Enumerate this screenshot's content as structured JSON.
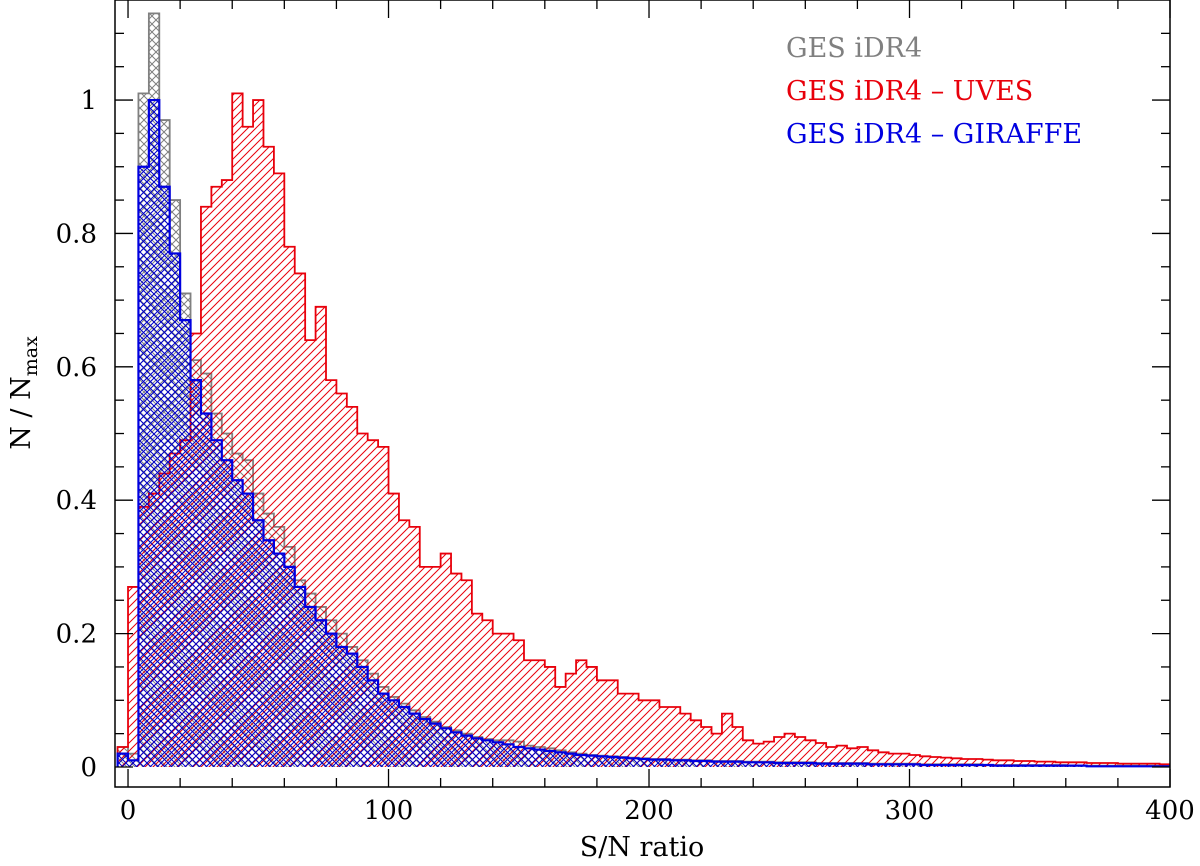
{
  "chart_data": {
    "type": "histogram",
    "xlabel": "S/N ratio",
    "ylabel": "N / N",
    "ylabel_sub": "max",
    "xlim": [
      -5,
      400
    ],
    "ylim": [
      -0.03,
      1.15
    ],
    "bin_width": 4,
    "x_start": -4,
    "xticks": [
      0,
      100,
      200,
      300,
      400
    ],
    "xtick_labels": [
      "0",
      "100",
      "200",
      "300",
      "400"
    ],
    "yticks": [
      0,
      0.2,
      0.4,
      0.6,
      0.8,
      1.0
    ],
    "ytick_labels": [
      "0",
      "0.2",
      "0.4",
      "0.6",
      "0.8",
      "1"
    ],
    "legend_position": "top-right",
    "series": [
      {
        "name": "GES iDR4",
        "color": "#808080",
        "hatch": "cross",
        "values": [
          0.03,
          0.02,
          1.01,
          1.13,
          0.97,
          0.85,
          0.71,
          0.61,
          0.59,
          0.53,
          0.5,
          0.47,
          0.46,
          0.41,
          0.38,
          0.36,
          0.33,
          0.28,
          0.26,
          0.24,
          0.22,
          0.2,
          0.18,
          0.16,
          0.14,
          0.12,
          0.105,
          0.095,
          0.085,
          0.075,
          0.068,
          0.06,
          0.055,
          0.05,
          0.045,
          0.042,
          0.04,
          0.04,
          0.038,
          0.032,
          0.03,
          0.028,
          0.025,
          0.022,
          0.02,
          0.018,
          0.017,
          0.016,
          0.015,
          0.014,
          0.013,
          0.012,
          0.012,
          0.011,
          0.011,
          0.01,
          0.01,
          0.009,
          0.009,
          0.009,
          0.008,
          0.008,
          0.008,
          0.007,
          0.007,
          0.007,
          0.007,
          0.006,
          0.006,
          0.006,
          0.006,
          0.006,
          0.005,
          0.005,
          0.005,
          0.005,
          0.005,
          0.004,
          0.004,
          0.004,
          0.004,
          0.004,
          0.004,
          0.003,
          0.003,
          0.003,
          0.003,
          0.003,
          0.003,
          0.003,
          0.003,
          0.002,
          0.002,
          0.002,
          0.002,
          0.002,
          0.002,
          0.002,
          0.002,
          0.002,
          0.002,
          0.001
        ]
      },
      {
        "name": "GES iDR4 – UVES",
        "color": "#e8000b",
        "hatch": "diag",
        "values": [
          0.03,
          0.27,
          0.39,
          0.41,
          0.44,
          0.47,
          0.49,
          0.65,
          0.84,
          0.87,
          0.88,
          1.01,
          0.96,
          1.0,
          0.93,
          0.89,
          0.78,
          0.74,
          0.64,
          0.69,
          0.58,
          0.56,
          0.54,
          0.5,
          0.49,
          0.48,
          0.41,
          0.37,
          0.36,
          0.3,
          0.3,
          0.32,
          0.29,
          0.28,
          0.23,
          0.22,
          0.2,
          0.2,
          0.19,
          0.16,
          0.16,
          0.15,
          0.12,
          0.14,
          0.16,
          0.15,
          0.13,
          0.13,
          0.11,
          0.11,
          0.1,
          0.1,
          0.09,
          0.09,
          0.08,
          0.07,
          0.06,
          0.05,
          0.08,
          0.06,
          0.04,
          0.035,
          0.038,
          0.045,
          0.05,
          0.045,
          0.04,
          0.036,
          0.03,
          0.032,
          0.028,
          0.03,
          0.025,
          0.022,
          0.02,
          0.02,
          0.018,
          0.016,
          0.015,
          0.014,
          0.013,
          0.012,
          0.012,
          0.011,
          0.01,
          0.01,
          0.009,
          0.009,
          0.008,
          0.008,
          0.007,
          0.007,
          0.007,
          0.006,
          0.006,
          0.006,
          0.005,
          0.005,
          0.005,
          0.005,
          0.004,
          0.004
        ]
      },
      {
        "name": "GES iDR4 – GIRAFFE",
        "color": "#0000e0",
        "hatch": "cross",
        "values": [
          0.02,
          0.01,
          0.9,
          1.0,
          0.87,
          0.77,
          0.67,
          0.58,
          0.53,
          0.49,
          0.46,
          0.43,
          0.41,
          0.37,
          0.34,
          0.32,
          0.3,
          0.27,
          0.24,
          0.22,
          0.2,
          0.18,
          0.17,
          0.15,
          0.13,
          0.11,
          0.1,
          0.09,
          0.08,
          0.072,
          0.065,
          0.058,
          0.052,
          0.047,
          0.043,
          0.04,
          0.037,
          0.034,
          0.03,
          0.028,
          0.026,
          0.024,
          0.022,
          0.02,
          0.018,
          0.017,
          0.016,
          0.015,
          0.014,
          0.013,
          0.012,
          0.011,
          0.011,
          0.01,
          0.01,
          0.009,
          0.009,
          0.008,
          0.008,
          0.008,
          0.007,
          0.007,
          0.007,
          0.006,
          0.006,
          0.006,
          0.006,
          0.005,
          0.005,
          0.005,
          0.005,
          0.005,
          0.004,
          0.004,
          0.004,
          0.004,
          0.004,
          0.003,
          0.003,
          0.003,
          0.003,
          0.003,
          0.003,
          0.003,
          0.002,
          0.002,
          0.002,
          0.002,
          0.002,
          0.002,
          0.002,
          0.002,
          0.002,
          0.001,
          0.001,
          0.001,
          0.001,
          0.001,
          0.001,
          0.001,
          0.001
        ]
      }
    ]
  }
}
